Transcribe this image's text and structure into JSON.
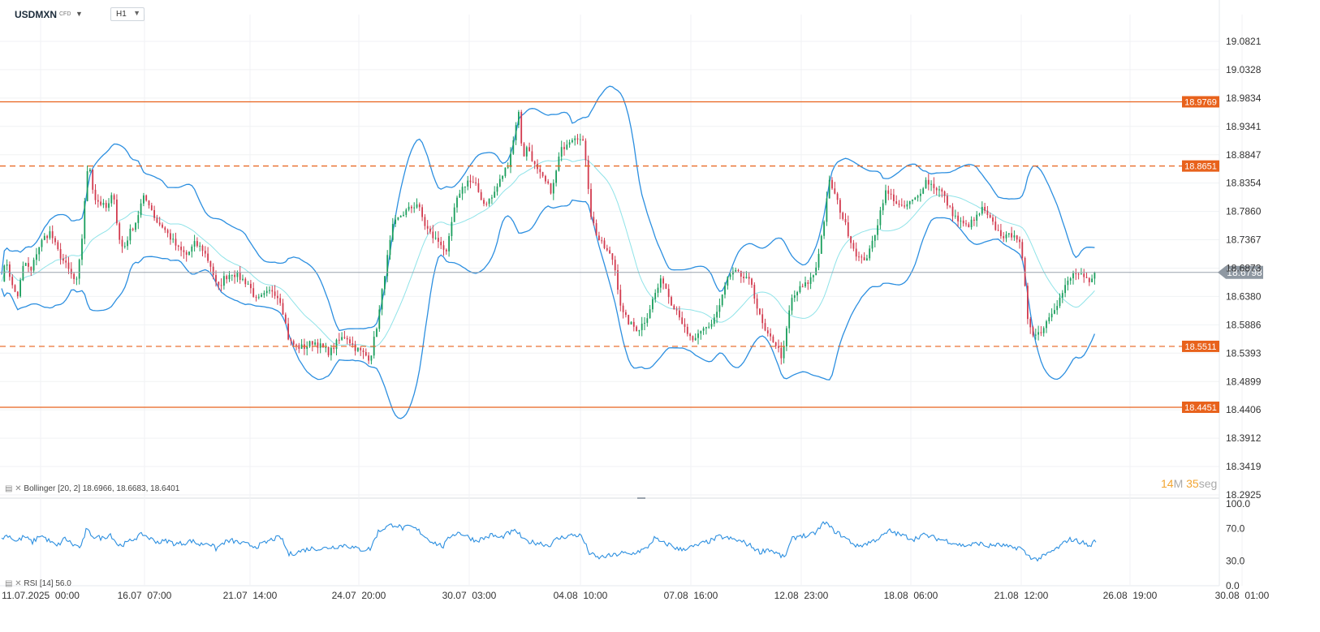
{
  "header": {
    "symbol": "USDMXN",
    "symbol_type": "CFD",
    "timeframe": "H1"
  },
  "indicators": {
    "bollinger": {
      "name": "Bollinger",
      "params": "[20, 2]",
      "upper": "18.6966",
      "middle": "18.6683",
      "lower": "18.6401"
    },
    "rsi": {
      "name": "RSI",
      "params": "[14]",
      "value": "56.0"
    }
  },
  "countdown": {
    "minutes": "14",
    "minutes_unit": "M",
    "seconds": "35",
    "seconds_unit": "seg"
  },
  "colors": {
    "bull_candle": "#1a9e5c",
    "bear_candle": "#d23a4e",
    "bollinger_band": "#2c8fe0",
    "bollinger_mid": "#8fe3e8",
    "level_line": "#e8621c",
    "price_line": "#9aa3ad",
    "rsi_line": "#2c8fe0"
  },
  "chart_data": [
    {
      "type": "candlestick",
      "title": "USDMXN",
      "timeframe": "H1",
      "x_tick_labels": [
        "11.07.2025  00:00",
        "16.07  07:00",
        "21.07  14:00",
        "24.07  20:00",
        "30.07  03:00",
        "04.08  10:00",
        "07.08  16:00",
        "12.08  23:00",
        "18.08  06:00",
        "21.08  12:00",
        "26.08  19:00",
        "30.08  01:00"
      ],
      "y_tick_labels": [
        "19.0821",
        "19.0328",
        "18.9834",
        "18.9341",
        "18.8847",
        "18.8354",
        "18.7860",
        "18.7367",
        "18.6873",
        "18.6380",
        "18.5886",
        "18.5393",
        "18.4899",
        "18.4406",
        "18.3912",
        "18.3419",
        "18.2925"
      ],
      "ylim": [
        18.2925,
        19.0821
      ],
      "last_price": "18.6798",
      "horizontal_levels": [
        {
          "price": "18.9769",
          "style": "solid"
        },
        {
          "price": "18.8651",
          "style": "dashed"
        },
        {
          "price": "18.5511",
          "style": "dashed"
        },
        {
          "price": "18.4451",
          "style": "solid"
        }
      ],
      "close_path": [
        [
          0,
          18.66
        ],
        [
          8,
          18.7
        ],
        [
          16,
          18.65
        ],
        [
          22,
          18.64
        ],
        [
          30,
          18.7
        ],
        [
          38,
          18.68
        ],
        [
          46,
          18.72
        ],
        [
          54,
          18.74
        ],
        [
          62,
          18.75
        ],
        [
          70,
          18.72
        ],
        [
          78,
          18.7
        ],
        [
          86,
          18.68
        ],
        [
          94,
          18.66
        ],
        [
          100,
          18.72
        ],
        [
          106,
          18.84
        ],
        [
          110,
          18.87
        ],
        [
          116,
          18.81
        ],
        [
          124,
          18.8
        ],
        [
          132,
          18.79
        ],
        [
          140,
          18.82
        ],
        [
          146,
          18.74
        ],
        [
          152,
          18.72
        ],
        [
          160,
          18.75
        ],
        [
          168,
          18.77
        ],
        [
          176,
          18.81
        ],
        [
          184,
          18.8
        ],
        [
          192,
          18.77
        ],
        [
          200,
          18.76
        ],
        [
          210,
          18.74
        ],
        [
          220,
          18.72
        ],
        [
          230,
          18.71
        ],
        [
          240,
          18.73
        ],
        [
          250,
          18.72
        ],
        [
          260,
          18.69
        ],
        [
          268,
          18.65
        ],
        [
          276,
          18.67
        ],
        [
          286,
          18.68
        ],
        [
          296,
          18.67
        ],
        [
          306,
          18.66
        ],
        [
          316,
          18.63
        ],
        [
          326,
          18.64
        ],
        [
          336,
          18.65
        ],
        [
          346,
          18.63
        ],
        [
          356,
          18.56
        ],
        [
          366,
          18.55
        ],
        [
          376,
          18.55
        ],
        [
          386,
          18.56
        ],
        [
          396,
          18.55
        ],
        [
          406,
          18.54
        ],
        [
          416,
          18.56
        ],
        [
          426,
          18.57
        ],
        [
          436,
          18.55
        ],
        [
          446,
          18.54
        ],
        [
          456,
          18.53
        ],
        [
          466,
          18.6
        ],
        [
          474,
          18.68
        ],
        [
          484,
          18.76
        ],
        [
          494,
          18.78
        ],
        [
          504,
          18.79
        ],
        [
          514,
          18.8
        ],
        [
          524,
          18.76
        ],
        [
          534,
          18.74
        ],
        [
          544,
          18.73
        ],
        [
          550,
          18.71
        ],
        [
          558,
          18.78
        ],
        [
          566,
          18.82
        ],
        [
          576,
          18.84
        ],
        [
          586,
          18.83
        ],
        [
          596,
          18.8
        ],
        [
          606,
          18.81
        ],
        [
          616,
          18.84
        ],
        [
          626,
          18.87
        ],
        [
          634,
          18.92
        ],
        [
          638,
          18.97
        ],
        [
          644,
          18.88
        ],
        [
          650,
          18.9
        ],
        [
          660,
          18.86
        ],
        [
          670,
          18.84
        ],
        [
          680,
          18.82
        ],
        [
          690,
          18.89
        ],
        [
          700,
          18.91
        ],
        [
          710,
          18.92
        ],
        [
          720,
          18.9
        ],
        [
          728,
          18.78
        ],
        [
          736,
          18.74
        ],
        [
          746,
          18.72
        ],
        [
          756,
          18.7
        ],
        [
          766,
          18.61
        ],
        [
          776,
          18.59
        ],
        [
          786,
          18.58
        ],
        [
          796,
          18.6
        ],
        [
          806,
          18.64
        ],
        [
          816,
          18.67
        ],
        [
          826,
          18.63
        ],
        [
          836,
          18.61
        ],
        [
          846,
          18.57
        ],
        [
          856,
          18.56
        ],
        [
          866,
          18.58
        ],
        [
          876,
          18.59
        ],
        [
          886,
          18.62
        ],
        [
          896,
          18.67
        ],
        [
          906,
          18.68
        ],
        [
          916,
          18.67
        ],
        [
          926,
          18.66
        ],
        [
          934,
          18.61
        ],
        [
          944,
          18.57
        ],
        [
          954,
          18.56
        ],
        [
          964,
          18.53
        ],
        [
          974,
          18.63
        ],
        [
          984,
          18.65
        ],
        [
          994,
          18.66
        ],
        [
          1004,
          18.68
        ],
        [
          1014,
          18.76
        ],
        [
          1022,
          18.84
        ],
        [
          1032,
          18.8
        ],
        [
          1042,
          18.76
        ],
        [
          1052,
          18.72
        ],
        [
          1060,
          18.7
        ],
        [
          1070,
          18.71
        ],
        [
          1080,
          18.76
        ],
        [
          1090,
          18.82
        ],
        [
          1100,
          18.81
        ],
        [
          1110,
          18.79
        ],
        [
          1120,
          18.8
        ],
        [
          1130,
          18.81
        ],
        [
          1140,
          18.84
        ],
        [
          1150,
          18.83
        ],
        [
          1160,
          18.82
        ],
        [
          1170,
          18.79
        ],
        [
          1180,
          18.77
        ],
        [
          1190,
          18.76
        ],
        [
          1200,
          18.77
        ],
        [
          1210,
          18.79
        ],
        [
          1220,
          18.77
        ],
        [
          1230,
          18.75
        ],
        [
          1240,
          18.74
        ],
        [
          1250,
          18.75
        ],
        [
          1258,
          18.72
        ],
        [
          1266,
          18.6
        ],
        [
          1274,
          18.57
        ],
        [
          1284,
          18.58
        ],
        [
          1294,
          18.61
        ],
        [
          1304,
          18.63
        ],
        [
          1314,
          18.66
        ],
        [
          1324,
          18.68
        ],
        [
          1334,
          18.67
        ],
        [
          1342,
          18.66
        ],
        [
          1350,
          18.68
        ]
      ]
    },
    {
      "type": "line",
      "title": "RSI",
      "series": [
        {
          "name": "RSI",
          "values": ""
        }
      ],
      "y_tick_labels": [
        "100.0",
        "70.0",
        "30.0",
        "0.0"
      ],
      "ylim": [
        0,
        100
      ],
      "last_value": 56.0,
      "path": [
        [
          0,
          57
        ],
        [
          10,
          62
        ],
        [
          20,
          54
        ],
        [
          30,
          60
        ],
        [
          40,
          53
        ],
        [
          50,
          62
        ],
        [
          60,
          55
        ],
        [
          70,
          48
        ],
        [
          80,
          58
        ],
        [
          90,
          50
        ],
        [
          100,
          47
        ],
        [
          106,
          68
        ],
        [
          116,
          60
        ],
        [
          126,
          58
        ],
        [
          136,
          63
        ],
        [
          146,
          49
        ],
        [
          156,
          52
        ],
        [
          166,
          58
        ],
        [
          176,
          63
        ],
        [
          186,
          57
        ],
        [
          196,
          53
        ],
        [
          206,
          55
        ],
        [
          216,
          51
        ],
        [
          226,
          52
        ],
        [
          236,
          55
        ],
        [
          246,
          50
        ],
        [
          256,
          53
        ],
        [
          266,
          45
        ],
        [
          276,
          53
        ],
        [
          286,
          55
        ],
        [
          296,
          52
        ],
        [
          306,
          50
        ],
        [
          316,
          48
        ],
        [
          326,
          52
        ],
        [
          336,
          57
        ],
        [
          346,
          59
        ],
        [
          356,
          38
        ],
        [
          366,
          41
        ],
        [
          376,
          44
        ],
        [
          386,
          46
        ],
        [
          396,
          45
        ],
        [
          406,
          47
        ],
        [
          416,
          48
        ],
        [
          426,
          50
        ],
        [
          436,
          46
        ],
        [
          446,
          44
        ],
        [
          456,
          45
        ],
        [
          466,
          66
        ],
        [
          476,
          72
        ],
        [
          486,
          75
        ],
        [
          496,
          70
        ],
        [
          506,
          72
        ],
        [
          516,
          67
        ],
        [
          526,
          58
        ],
        [
          536,
          52
        ],
        [
          546,
          48
        ],
        [
          556,
          62
        ],
        [
          566,
          65
        ],
        [
          576,
          60
        ],
        [
          586,
          55
        ],
        [
          596,
          58
        ],
        [
          606,
          62
        ],
        [
          616,
          58
        ],
        [
          626,
          64
        ],
        [
          636,
          67
        ],
        [
          646,
          55
        ],
        [
          656,
          53
        ],
        [
          666,
          52
        ],
        [
          676,
          49
        ],
        [
          686,
          57
        ],
        [
          696,
          60
        ],
        [
          706,
          62
        ],
        [
          716,
          61
        ],
        [
          726,
          40
        ],
        [
          736,
          34
        ],
        [
          746,
          36
        ],
        [
          756,
          37
        ],
        [
          766,
          40
        ],
        [
          776,
          38
        ],
        [
          786,
          42
        ],
        [
          796,
          45
        ],
        [
          806,
          58
        ],
        [
          816,
          52
        ],
        [
          826,
          50
        ],
        [
          836,
          44
        ],
        [
          846,
          46
        ],
        [
          856,
          48
        ],
        [
          866,
          52
        ],
        [
          876,
          55
        ],
        [
          886,
          60
        ],
        [
          896,
          58
        ],
        [
          906,
          56
        ],
        [
          916,
          53
        ],
        [
          926,
          48
        ],
        [
          936,
          41
        ],
        [
          946,
          45
        ],
        [
          956,
          40
        ],
        [
          966,
          34
        ],
        [
          976,
          57
        ],
        [
          986,
          62
        ],
        [
          996,
          60
        ],
        [
          1006,
          66
        ],
        [
          1016,
          78
        ],
        [
          1026,
          68
        ],
        [
          1036,
          62
        ],
        [
          1046,
          55
        ],
        [
          1056,
          48
        ],
        [
          1066,
          51
        ],
        [
          1076,
          55
        ],
        [
          1086,
          60
        ],
        [
          1096,
          67
        ],
        [
          1106,
          63
        ],
        [
          1116,
          60
        ],
        [
          1126,
          57
        ],
        [
          1136,
          62
        ],
        [
          1146,
          60
        ],
        [
          1156,
          57
        ],
        [
          1166,
          55
        ],
        [
          1176,
          52
        ],
        [
          1186,
          49
        ],
        [
          1196,
          50
        ],
        [
          1206,
          52
        ],
        [
          1216,
          48
        ],
        [
          1226,
          50
        ],
        [
          1236,
          49
        ],
        [
          1246,
          46
        ],
        [
          1256,
          47
        ],
        [
          1266,
          37
        ],
        [
          1276,
          32
        ],
        [
          1286,
          36
        ],
        [
          1296,
          42
        ],
        [
          1306,
          48
        ],
        [
          1316,
          57
        ],
        [
          1326,
          55
        ],
        [
          1336,
          52
        ],
        [
          1342,
          48
        ],
        [
          1350,
          56
        ]
      ]
    }
  ]
}
